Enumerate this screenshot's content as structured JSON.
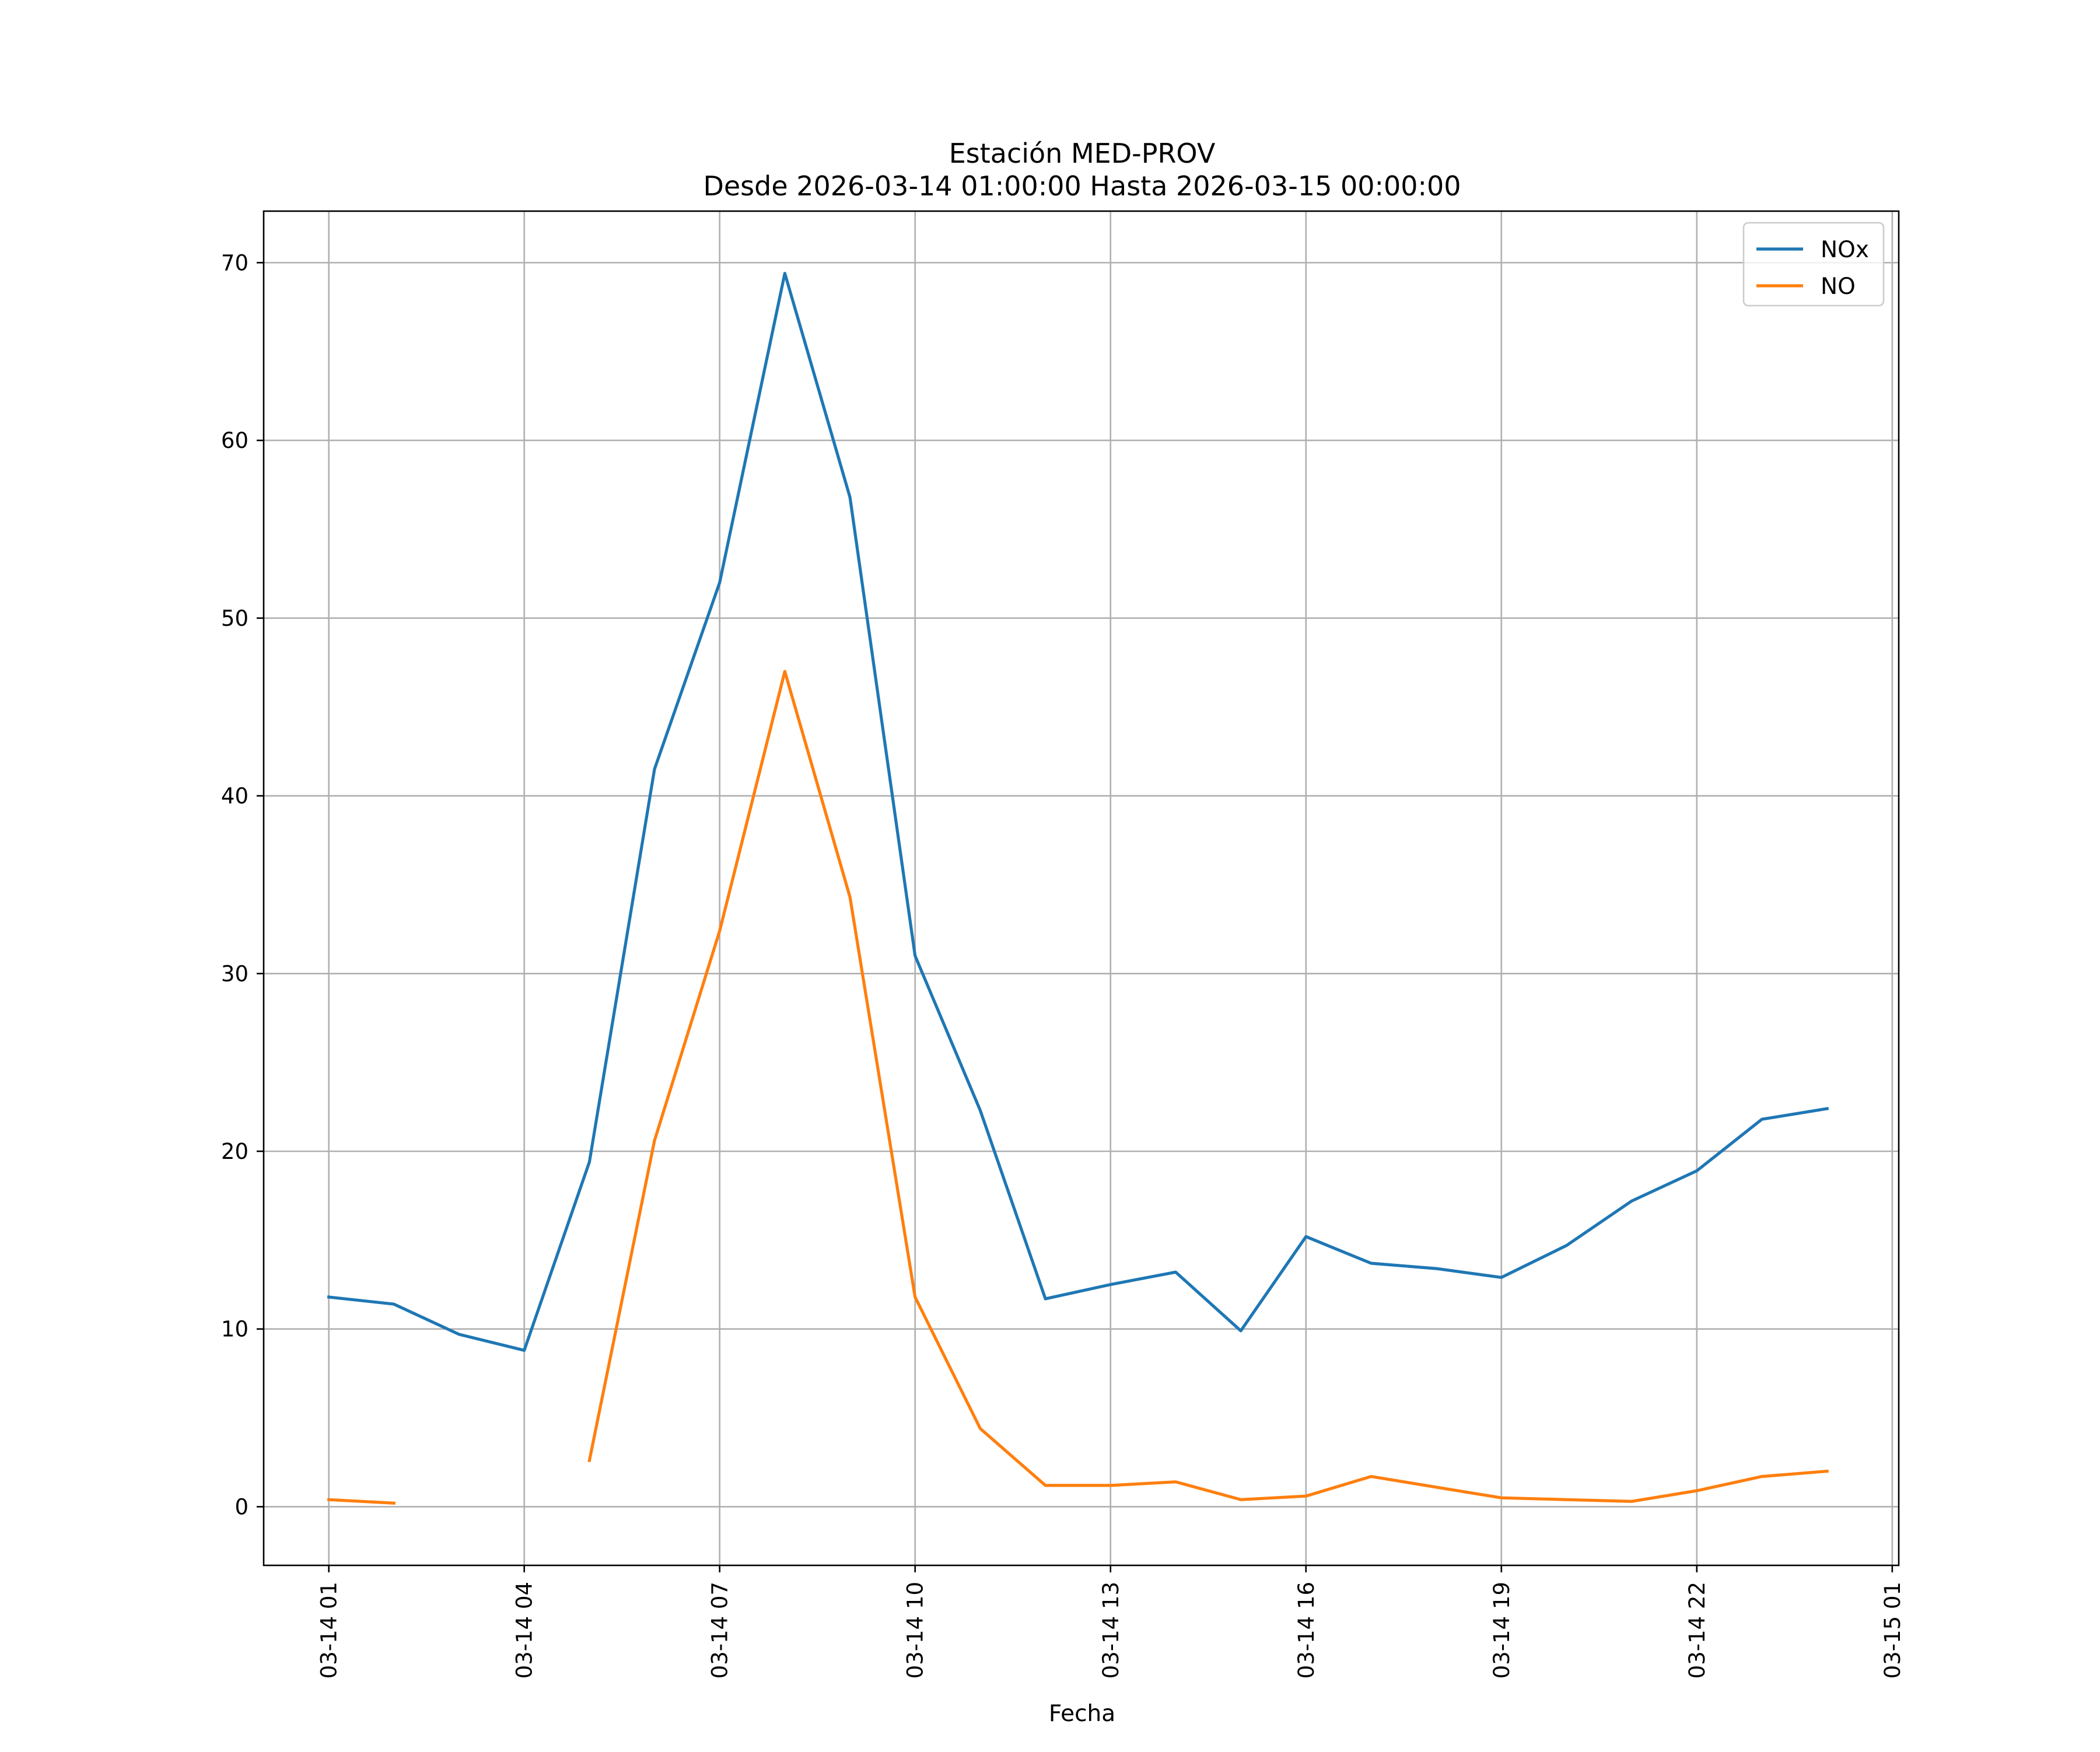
{
  "chart_data": {
    "type": "line",
    "title": "Estación MED-PROV",
    "subtitle": "Desde 2026-03-14 01:00:00 Hasta 2026-03-15 00:00:00",
    "xlabel": "Fecha",
    "ylabel": "",
    "grid": true,
    "legend_position": "top-right",
    "x": [
      "2026-03-14 01:00",
      "2026-03-14 02:00",
      "2026-03-14 03:00",
      "2026-03-14 04:00",
      "2026-03-14 05:00",
      "2026-03-14 06:00",
      "2026-03-14 07:00",
      "2026-03-14 08:00",
      "2026-03-14 09:00",
      "2026-03-14 10:00",
      "2026-03-14 11:00",
      "2026-03-14 12:00",
      "2026-03-14 13:00",
      "2026-03-14 14:00",
      "2026-03-14 15:00",
      "2026-03-14 16:00",
      "2026-03-14 17:00",
      "2026-03-14 18:00",
      "2026-03-14 19:00",
      "2026-03-14 20:00",
      "2026-03-14 21:00",
      "2026-03-14 22:00",
      "2026-03-14 23:00",
      "2026-03-15 00:00"
    ],
    "x_range": [
      "2026-03-14 00:00",
      "2026-03-15 01:06"
    ],
    "ylim": [
      -3.3,
      72.9
    ],
    "xticks": [
      "03-14 01",
      "03-14 04",
      "03-14 07",
      "03-14 10",
      "03-14 13",
      "03-14 16",
      "03-14 19",
      "03-14 22",
      "03-15 01"
    ],
    "yticks": [
      0,
      10,
      20,
      30,
      40,
      50,
      60,
      70
    ],
    "series": [
      {
        "name": "NOx",
        "color": "#1f77b4",
        "values": [
          11.8,
          11.4,
          9.7,
          8.8,
          19.4,
          41.5,
          52.0,
          69.4,
          56.8,
          31.0,
          22.3,
          11.7,
          12.5,
          13.2,
          9.9,
          15.2,
          13.7,
          13.4,
          12.9,
          14.7,
          17.2,
          18.9,
          21.8,
          22.4
        ]
      },
      {
        "name": "NO",
        "color": "#ff7f0e",
        "values": [
          0.4,
          0.2,
          null,
          null,
          2.6,
          20.6,
          32.4,
          47.0,
          34.3,
          11.8,
          4.4,
          1.2,
          1.2,
          1.4,
          0.4,
          0.6,
          1.7,
          1.1,
          0.5,
          0.4,
          0.3,
          0.9,
          1.7,
          2.0
        ]
      }
    ]
  }
}
